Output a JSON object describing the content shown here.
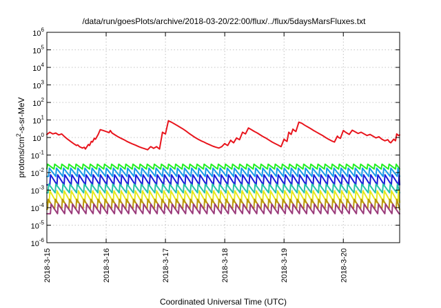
{
  "chart_data": {
    "type": "line",
    "title": "/data/run/goesPlots/archive/2018-03-20/22:00/flux/../flux/5daysMarsFluxes.txt",
    "xlabel": "Coordinated Universal Time (UTC)",
    "ylabel": {
      "prefix": "protons/cm",
      "superscript": "2",
      "suffix": "-s-sr-MeV"
    },
    "xlim": [
      0,
      5.95
    ],
    "x_unit": "days since 2018-3-15 00:00 UTC",
    "x_ticks": [
      {
        "value": 0,
        "label": "2018-3-15"
      },
      {
        "value": 1,
        "label": "2018-3-16"
      },
      {
        "value": 2,
        "label": "2018-3-17"
      },
      {
        "value": 3,
        "label": "2018-3-18"
      },
      {
        "value": 4,
        "label": "2018-3-19"
      },
      {
        "value": 5,
        "label": "2018-3-20"
      }
    ],
    "y_scale": "log",
    "ylim_exponent": [
      -6,
      6
    ],
    "y_ticks": [
      {
        "exp": -6,
        "base": "10",
        "sup": "-6"
      },
      {
        "exp": -5,
        "base": "10",
        "sup": "-5"
      },
      {
        "exp": -4,
        "base": "10",
        "sup": "-4"
      },
      {
        "exp": -3,
        "base": "10",
        "sup": "-3"
      },
      {
        "exp": -2,
        "base": "10",
        "sup": "-2"
      },
      {
        "exp": -1,
        "base": "10",
        "sup": "-1"
      },
      {
        "exp": 0,
        "base": "10",
        "sup": "0"
      },
      {
        "exp": 1,
        "base": "10",
        "sup": "1"
      },
      {
        "exp": 2,
        "base": "10",
        "sup": "2"
      },
      {
        "exp": 3,
        "base": "10",
        "sup": "3"
      },
      {
        "exp": 4,
        "base": "10",
        "sup": "4"
      },
      {
        "exp": 5,
        "base": "10",
        "sup": "5"
      },
      {
        "exp": 6,
        "base": "10",
        "sup": "6"
      }
    ],
    "grid": true,
    "series": [
      {
        "color": "#e8141c",
        "points": [
          [
            0.0,
            1.5
          ],
          [
            0.05,
            2.0
          ],
          [
            0.1,
            1.6
          ],
          [
            0.15,
            1.8
          ],
          [
            0.2,
            1.4
          ],
          [
            0.25,
            1.6
          ],
          [
            0.3,
            1.1
          ],
          [
            0.35,
            0.8
          ],
          [
            0.4,
            0.6
          ],
          [
            0.45,
            0.45
          ],
          [
            0.5,
            0.35
          ],
          [
            0.52,
            0.38
          ],
          [
            0.55,
            0.3
          ],
          [
            0.6,
            0.25
          ],
          [
            0.63,
            0.28
          ],
          [
            0.65,
            0.22
          ],
          [
            0.7,
            0.4
          ],
          [
            0.72,
            0.35
          ],
          [
            0.75,
            0.6
          ],
          [
            0.77,
            0.55
          ],
          [
            0.8,
            0.9
          ],
          [
            0.82,
            0.8
          ],
          [
            0.85,
            1.2
          ],
          [
            0.87,
            1.6
          ],
          [
            0.9,
            2.8
          ],
          [
            0.95,
            2.5
          ],
          [
            1.0,
            2.2
          ],
          [
            1.05,
            1.9
          ],
          [
            1.07,
            2.5
          ],
          [
            1.1,
            1.8
          ],
          [
            1.15,
            1.4
          ],
          [
            1.2,
            1.1
          ],
          [
            1.25,
            0.9
          ],
          [
            1.3,
            0.75
          ],
          [
            1.35,
            0.6
          ],
          [
            1.4,
            0.5
          ],
          [
            1.45,
            0.42
          ],
          [
            1.5,
            0.36
          ],
          [
            1.55,
            0.3
          ],
          [
            1.6,
            0.26
          ],
          [
            1.65,
            0.23
          ],
          [
            1.7,
            0.2
          ],
          [
            1.75,
            0.3
          ],
          [
            1.77,
            0.28
          ],
          [
            1.8,
            0.24
          ],
          [
            1.85,
            0.3
          ],
          [
            1.9,
            0.22
          ],
          [
            1.95,
            2.0
          ],
          [
            1.97,
            1.8
          ],
          [
            2.0,
            1.6
          ],
          [
            2.05,
            9.0
          ],
          [
            2.1,
            7.5
          ],
          [
            2.15,
            6.0
          ],
          [
            2.2,
            4.8
          ],
          [
            2.25,
            3.8
          ],
          [
            2.3,
            3.0
          ],
          [
            2.35,
            2.3
          ],
          [
            2.4,
            1.7
          ],
          [
            2.45,
            1.3
          ],
          [
            2.5,
            1.0
          ],
          [
            2.55,
            0.8
          ],
          [
            2.6,
            0.65
          ],
          [
            2.65,
            0.55
          ],
          [
            2.7,
            0.45
          ],
          [
            2.75,
            0.38
          ],
          [
            2.8,
            0.32
          ],
          [
            2.85,
            0.28
          ],
          [
            2.9,
            0.25
          ],
          [
            2.95,
            0.3
          ],
          [
            3.0,
            0.45
          ],
          [
            3.02,
            0.4
          ],
          [
            3.05,
            0.35
          ],
          [
            3.1,
            0.7
          ],
          [
            3.12,
            0.6
          ],
          [
            3.15,
            0.5
          ],
          [
            3.2,
            0.95
          ],
          [
            3.22,
            0.85
          ],
          [
            3.25,
            0.75
          ],
          [
            3.3,
            2.0
          ],
          [
            3.35,
            1.6
          ],
          [
            3.4,
            3.5
          ],
          [
            3.45,
            2.8
          ],
          [
            3.5,
            2.2
          ],
          [
            3.55,
            1.8
          ],
          [
            3.6,
            1.4
          ],
          [
            3.65,
            1.1
          ],
          [
            3.7,
            0.9
          ],
          [
            3.75,
            0.7
          ],
          [
            3.8,
            0.55
          ],
          [
            3.85,
            0.45
          ],
          [
            3.9,
            0.37
          ],
          [
            3.95,
            0.3
          ],
          [
            4.0,
            0.8
          ],
          [
            4.02,
            0.7
          ],
          [
            4.05,
            0.6
          ],
          [
            4.08,
            2.0
          ],
          [
            4.1,
            1.7
          ],
          [
            4.12,
            1.5
          ],
          [
            4.15,
            3.0
          ],
          [
            4.17,
            2.6
          ],
          [
            4.2,
            2.2
          ],
          [
            4.25,
            7.5
          ],
          [
            4.3,
            6.5
          ],
          [
            4.35,
            5.0
          ],
          [
            4.4,
            4.0
          ],
          [
            4.45,
            3.2
          ],
          [
            4.5,
            2.5
          ],
          [
            4.55,
            2.0
          ],
          [
            4.6,
            1.6
          ],
          [
            4.65,
            1.3
          ],
          [
            4.7,
            1.0
          ],
          [
            4.75,
            0.8
          ],
          [
            4.8,
            0.65
          ],
          [
            4.85,
            0.55
          ],
          [
            4.9,
            1.2
          ],
          [
            4.92,
            1.0
          ],
          [
            4.95,
            0.9
          ],
          [
            5.0,
            2.5
          ],
          [
            5.03,
            2.1
          ],
          [
            5.06,
            1.8
          ],
          [
            5.1,
            1.5
          ],
          [
            5.15,
            2.6
          ],
          [
            5.2,
            2.1
          ],
          [
            5.25,
            1.7
          ],
          [
            5.3,
            2.0
          ],
          [
            5.35,
            1.6
          ],
          [
            5.4,
            1.3
          ],
          [
            5.45,
            1.5
          ],
          [
            5.5,
            1.2
          ],
          [
            5.55,
            0.95
          ],
          [
            5.6,
            1.1
          ],
          [
            5.65,
            0.8
          ],
          [
            5.7,
            0.65
          ],
          [
            5.75,
            0.75
          ],
          [
            5.78,
            0.55
          ],
          [
            5.8,
            0.5
          ],
          [
            5.85,
            0.8
          ],
          [
            5.88,
            0.65
          ],
          [
            5.9,
            1.6
          ],
          [
            5.93,
            1.3
          ],
          [
            5.95,
            1.4
          ]
        ]
      },
      {
        "color": "#22ee22",
        "sawtooth": {
          "peak": 0.03,
          "trough": 0.016,
          "period": 0.12,
          "start": 0.0
        }
      },
      {
        "color": "#1899e8",
        "sawtooth": {
          "peak": 0.018,
          "trough": 0.006,
          "period": 0.12,
          "start": 0.03
        }
      },
      {
        "color": "#1a1ad8",
        "sawtooth": {
          "peak": 0.0075,
          "trough": 0.002,
          "period": 0.12,
          "start": 0.05
        }
      },
      {
        "color": "#26c4a8",
        "sawtooth": {
          "peak": 0.0022,
          "trough": 0.0007,
          "period": 0.12,
          "start": 0.02
        }
      },
      {
        "color": "#e8e81c",
        "sawtooth": {
          "peak": 0.0009,
          "trough": 0.0002,
          "period": 0.12,
          "start": 0.04
        }
      },
      {
        "color": "#b8940e",
        "sawtooth": {
          "peak": 0.0003,
          "trough": 8e-05,
          "period": 0.12,
          "start": 0.01
        }
      },
      {
        "color": "#9a3a7a",
        "sawtooth": {
          "peak": 0.00016,
          "trough": 4.5e-05,
          "period": 0.12,
          "start": 0.06
        }
      }
    ]
  }
}
